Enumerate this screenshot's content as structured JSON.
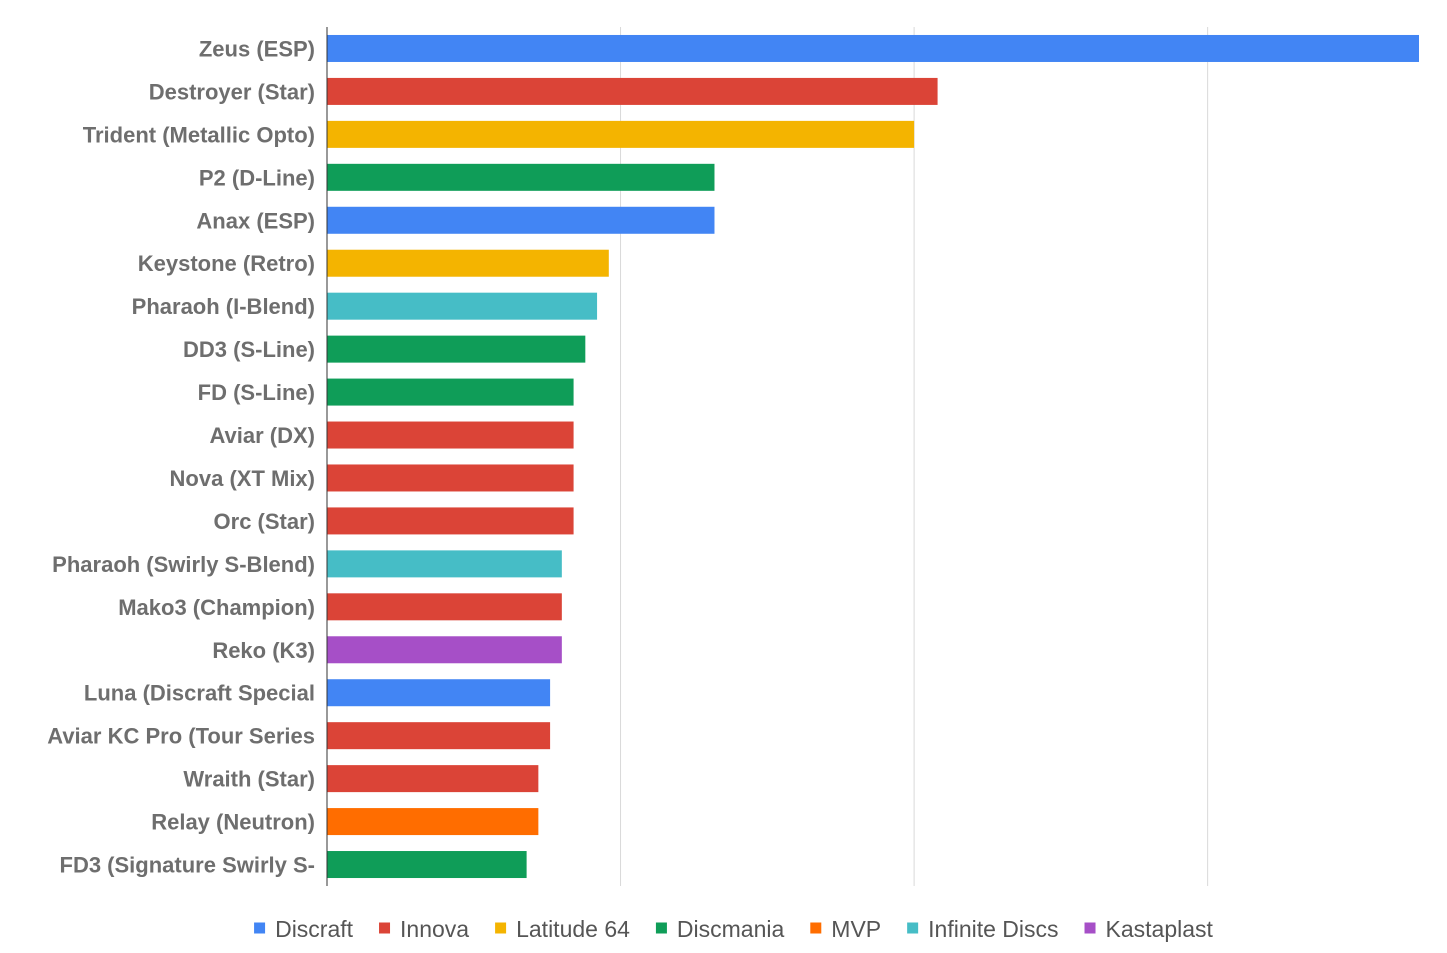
{
  "chart_data": {
    "type": "bar",
    "orientation": "horizontal",
    "title": "",
    "xlabel": "",
    "ylabel": "",
    "grid": true,
    "xlim": [
      0,
      18.6
    ],
    "gridlines": [
      5,
      10,
      15
    ],
    "x_tick_labels_shown": false,
    "legend_position": "bottom",
    "colors": {
      "Discraft": "#4285f4",
      "Innova": "#db4437",
      "Latitude 64": "#f4b400",
      "Discmania": "#0f9d58",
      "MVP": "#ff6d00",
      "Infinite Discs": "#46bdc6",
      "Kastaplast": "#a64fc7"
    },
    "legend": [
      "Discraft",
      "Innova",
      "Latitude 64",
      "Discmania",
      "MVP",
      "Infinite Discs",
      "Kastaplast"
    ],
    "categories": [
      "Zeus (ESP)",
      "Destroyer (Star)",
      "Trident (Metallic Opto)",
      "P2 (D-Line)",
      "Anax (ESP)",
      "Keystone (Retro)",
      "Pharaoh (I-Blend)",
      "DD3 (S-Line)",
      "FD (S-Line)",
      "Aviar (DX)",
      "Nova (XT Mix)",
      "Orc (Star)",
      "Pharaoh (Swirly S-Blend)",
      "Mako3 (Champion)",
      "Reko (K3)",
      "Luna (Discraft Special",
      "Aviar KC Pro (Tour Series",
      "Wraith (Star)",
      "Relay (Neutron)",
      "FD3 (Signature Swirly S-"
    ],
    "values": [
      18.6,
      10.4,
      10.0,
      6.6,
      6.6,
      4.8,
      4.6,
      4.4,
      4.2,
      4.2,
      4.2,
      4.2,
      4.0,
      4.0,
      4.0,
      3.8,
      3.8,
      3.6,
      3.6,
      3.4
    ],
    "brands": [
      "Discraft",
      "Innova",
      "Latitude 64",
      "Discmania",
      "Discraft",
      "Latitude 64",
      "Infinite Discs",
      "Discmania",
      "Discmania",
      "Innova",
      "Innova",
      "Innova",
      "Infinite Discs",
      "Innova",
      "Kastaplast",
      "Discraft",
      "Innova",
      "Innova",
      "MVP",
      "Discmania"
    ]
  }
}
